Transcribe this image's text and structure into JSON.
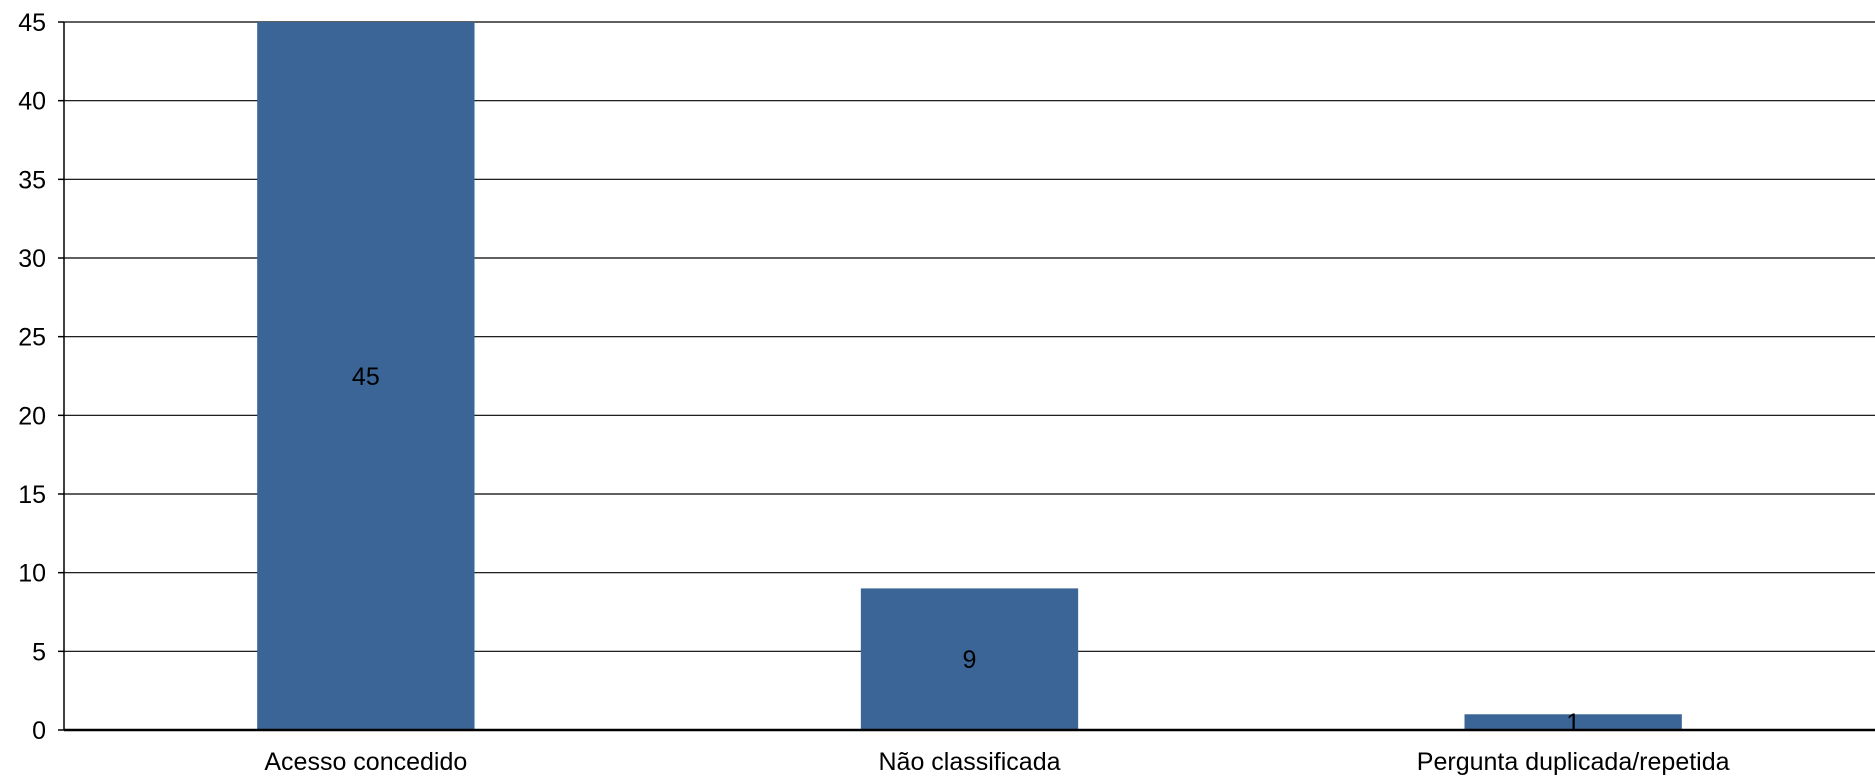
{
  "chart_data": {
    "type": "bar",
    "title": "",
    "xlabel": "",
    "ylabel": "",
    "categories": [
      "Acesso concedido",
      "Não classificada",
      "Pergunta duplicada/repetida"
    ],
    "values": [
      45,
      9,
      1
    ],
    "data_labels": [
      "45",
      "9",
      "1"
    ],
    "ylim": [
      0,
      45
    ],
    "yticks": [
      0,
      5,
      10,
      15,
      20,
      25,
      30,
      35,
      40,
      45
    ],
    "grid": true,
    "legend": "none",
    "bar_color": "#3a6596",
    "gridline_color": "#000000"
  }
}
